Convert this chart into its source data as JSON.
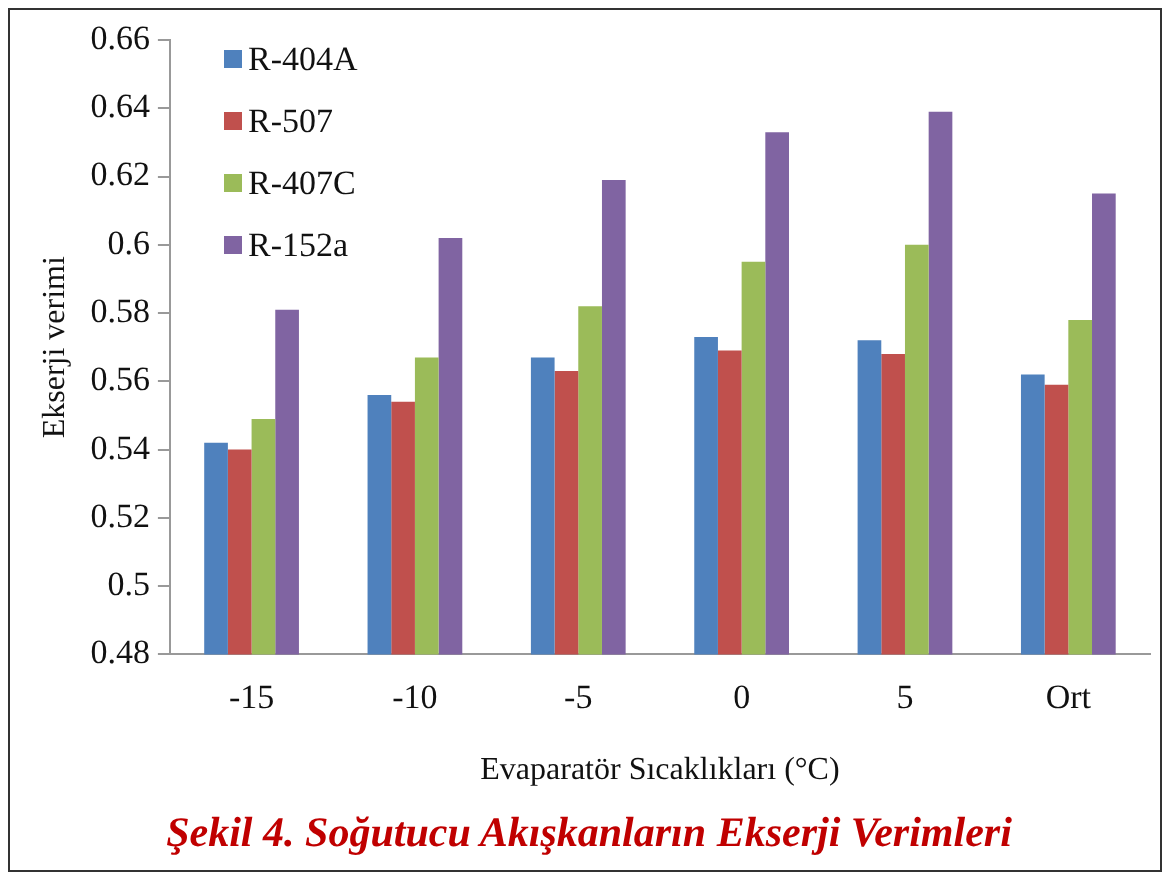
{
  "chart_data": {
    "type": "bar",
    "xlabel": "Evaparatör Sıcaklıkları (°C)",
    "ylabel": "Ekserji verimi",
    "annotations": [
      "Şekil 4. Soğutucu Akışkanların Ekserji Verimleri"
    ],
    "categories": [
      "-15",
      "-10",
      "-5",
      "0",
      "5",
      "Ort"
    ],
    "series": [
      {
        "name": "R-404A",
        "color": "#4f81bd",
        "values": [
          0.542,
          0.556,
          0.567,
          0.573,
          0.572,
          0.562
        ]
      },
      {
        "name": "R-507",
        "color": "#c0504d",
        "values": [
          0.54,
          0.554,
          0.563,
          0.569,
          0.568,
          0.559
        ]
      },
      {
        "name": "R-407C",
        "color": "#9bbb59",
        "values": [
          0.549,
          0.567,
          0.582,
          0.595,
          0.6,
          0.578
        ]
      },
      {
        "name": "R-152a",
        "color": "#8064a2",
        "values": [
          0.581,
          0.602,
          0.619,
          0.633,
          0.639,
          0.615
        ]
      }
    ],
    "ylim": [
      0.48,
      0.66
    ],
    "yticks": [
      0.48,
      0.5,
      0.52,
      0.54,
      0.56,
      0.58,
      0.6,
      0.62,
      0.64,
      0.66
    ],
    "grid": false,
    "legend": "top left"
  }
}
